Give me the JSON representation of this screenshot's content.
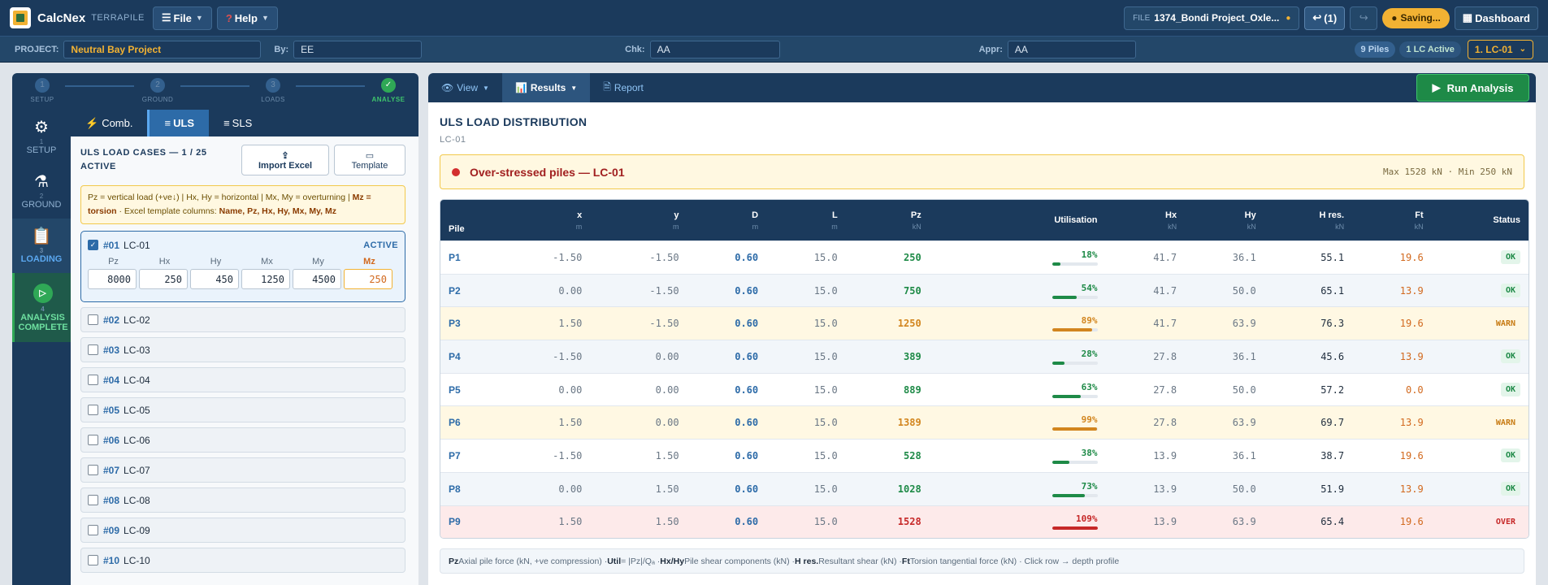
{
  "app": {
    "name": "CalcNex",
    "sub": "TERRAPILE"
  },
  "topbar": {
    "file_label": "File",
    "help_label": "Help",
    "file_tag": "FILE",
    "file_name": "1374_Bondi Project_Oxle...",
    "undo_label": "(1)",
    "saving_label": "Saving...",
    "dashboard_label": "Dashboard"
  },
  "project": {
    "project_label": "PROJECT:",
    "project_value": "Neutral Bay Project",
    "by_label": "By:",
    "by_value": "EE",
    "chk_label": "Chk:",
    "chk_value": "AA",
    "appr_label": "Appr:",
    "appr_value": "AA",
    "piles_badge": "9 Piles",
    "lc_badge": "1 LC Active",
    "lc_select": "1. LC-01"
  },
  "steps": [
    {
      "num": "1",
      "label": "SETUP"
    },
    {
      "num": "2",
      "label": "GROUND"
    },
    {
      "num": "3",
      "label": "LOADS"
    },
    {
      "num": "✓",
      "label": "ANALYSE"
    }
  ],
  "rail": [
    {
      "num": "1",
      "label": "SETUP"
    },
    {
      "num": "2",
      "label": "GROUND"
    },
    {
      "num": "3",
      "label": "LOADING"
    },
    {
      "num": "4",
      "label": "ANALYSIS COMPLETE"
    }
  ],
  "loadtabs": {
    "comb": "Comb.",
    "uls": "ULS",
    "sls": "SLS"
  },
  "uls": {
    "title": "ULS LOAD CASES — 1 / 25 ACTIVE",
    "import_label": "Import Excel",
    "template_label": "Template",
    "note_a": "Pz = vertical load (+ve↓) | Hx, Hy = horizontal | Mx, My = overturning | ",
    "note_mz": "Mz = torsion",
    "note_b": " · Excel template columns: ",
    "note_cols": "Name, Pz, Hx, Hy, Mx, My, Mz",
    "active_case": {
      "num": "#01",
      "name": "LC-01",
      "badge": "ACTIVE",
      "headers": [
        "Pz",
        "Hx",
        "Hy",
        "Mx",
        "My",
        "Mz"
      ],
      "values": [
        "8000",
        "250",
        "450",
        "1250",
        "4500",
        "250"
      ]
    },
    "cases": [
      {
        "num": "#02",
        "name": "LC-02"
      },
      {
        "num": "#03",
        "name": "LC-03"
      },
      {
        "num": "#04",
        "name": "LC-04"
      },
      {
        "num": "#05",
        "name": "LC-05"
      },
      {
        "num": "#06",
        "name": "LC-06"
      },
      {
        "num": "#07",
        "name": "LC-07"
      },
      {
        "num": "#08",
        "name": "LC-08"
      },
      {
        "num": "#09",
        "name": "LC-09"
      },
      {
        "num": "#10",
        "name": "LC-10"
      }
    ]
  },
  "results": {
    "tabs": {
      "view": "View",
      "results": "Results",
      "report": "Report"
    },
    "run_label": "Run Analysis",
    "title": "ULS LOAD DISTRIBUTION",
    "subtitle": "LC-01",
    "alert": "Over-stressed piles — LC-01",
    "alert_stats": "Max 1528 kN · Min 250 kN",
    "columns": [
      {
        "name": "Pile",
        "unit": ""
      },
      {
        "name": "x",
        "unit": "m"
      },
      {
        "name": "y",
        "unit": "m"
      },
      {
        "name": "D",
        "unit": "m"
      },
      {
        "name": "L",
        "unit": "m"
      },
      {
        "name": "Pz",
        "unit": "kN"
      },
      {
        "name": "Utilisation",
        "unit": ""
      },
      {
        "name": "Hx",
        "unit": "kN"
      },
      {
        "name": "Hy",
        "unit": "kN"
      },
      {
        "name": "H res.",
        "unit": "kN"
      },
      {
        "name": "Ft",
        "unit": "kN"
      },
      {
        "name": "Status",
        "unit": ""
      }
    ],
    "rows": [
      {
        "pile": "P1",
        "x": "-1.50",
        "y": "-1.50",
        "d": "0.60",
        "l": "15.0",
        "pz": "250",
        "util": "18%",
        "util_value": 18,
        "hx": "41.7",
        "hy": "36.1",
        "hres": "55.1",
        "ft": "19.6",
        "status": "OK",
        "level": "ok"
      },
      {
        "pile": "P2",
        "x": "0.00",
        "y": "-1.50",
        "d": "0.60",
        "l": "15.0",
        "pz": "750",
        "util": "54%",
        "util_value": 54,
        "hx": "41.7",
        "hy": "50.0",
        "hres": "65.1",
        "ft": "13.9",
        "status": "OK",
        "level": "ok"
      },
      {
        "pile": "P3",
        "x": "1.50",
        "y": "-1.50",
        "d": "0.60",
        "l": "15.0",
        "pz": "1250",
        "util": "89%",
        "util_value": 89,
        "hx": "41.7",
        "hy": "63.9",
        "hres": "76.3",
        "ft": "19.6",
        "status": "WARN",
        "level": "warn"
      },
      {
        "pile": "P4",
        "x": "-1.50",
        "y": "0.00",
        "d": "0.60",
        "l": "15.0",
        "pz": "389",
        "util": "28%",
        "util_value": 28,
        "hx": "27.8",
        "hy": "36.1",
        "hres": "45.6",
        "ft": "13.9",
        "status": "OK",
        "level": "ok"
      },
      {
        "pile": "P5",
        "x": "0.00",
        "y": "0.00",
        "d": "0.60",
        "l": "15.0",
        "pz": "889",
        "util": "63%",
        "util_value": 63,
        "hx": "27.8",
        "hy": "50.0",
        "hres": "57.2",
        "ft": "0.0",
        "status": "OK",
        "level": "ok"
      },
      {
        "pile": "P6",
        "x": "1.50",
        "y": "0.00",
        "d": "0.60",
        "l": "15.0",
        "pz": "1389",
        "util": "99%",
        "util_value": 99,
        "hx": "27.8",
        "hy": "63.9",
        "hres": "69.7",
        "ft": "13.9",
        "status": "WARN",
        "level": "warn"
      },
      {
        "pile": "P7",
        "x": "-1.50",
        "y": "1.50",
        "d": "0.60",
        "l": "15.0",
        "pz": "528",
        "util": "38%",
        "util_value": 38,
        "hx": "13.9",
        "hy": "36.1",
        "hres": "38.7",
        "ft": "19.6",
        "status": "OK",
        "level": "ok"
      },
      {
        "pile": "P8",
        "x": "0.00",
        "y": "1.50",
        "d": "0.60",
        "l": "15.0",
        "pz": "1028",
        "util": "73%",
        "util_value": 73,
        "hx": "13.9",
        "hy": "50.0",
        "hres": "51.9",
        "ft": "13.9",
        "status": "OK",
        "level": "ok"
      },
      {
        "pile": "P9",
        "x": "1.50",
        "y": "1.50",
        "d": "0.60",
        "l": "15.0",
        "pz": "1528",
        "util": "109%",
        "util_value": 109,
        "hx": "13.9",
        "hy": "63.9",
        "hres": "65.4",
        "ft": "19.6",
        "status": "OVER",
        "level": "over"
      }
    ],
    "footnote": [
      {
        "b": "Pz",
        "t": " Axial pile force (kN, +ve compression) · "
      },
      {
        "b": "Util",
        "t": " = |Pz|/Qₐ · "
      },
      {
        "b": "Hx/Hy",
        "t": " Pile shear components (kN) · "
      },
      {
        "b": "H res.",
        "t": " Resultant shear (kN) · "
      },
      {
        "b": "Ft",
        "t": " Torsion tangential force (kN) · Click row → depth profile"
      }
    ]
  },
  "colors": {
    "accent": "#2d6ba8",
    "navy": "#1b3a5c",
    "ok": "#1e8a47",
    "warn": "#d2851e",
    "over": "#c62828",
    "brand_yellow": "#f2b233"
  }
}
